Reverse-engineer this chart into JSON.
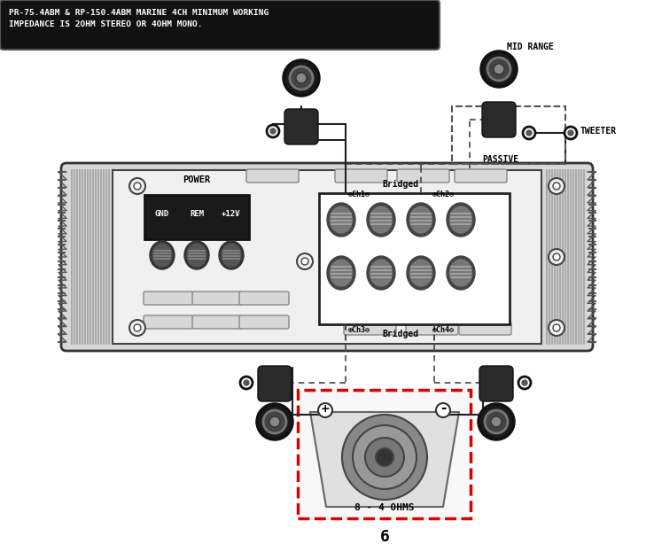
{
  "title_text": "PR-75.4ABM & RP-150.4ABM MARINE 4CH MINIMUM WORKING\nIMPEDANCE IS 2OHM STEREO OR 4OHM MONO.",
  "bg_color": "#ffffff",
  "amp_body_color": "#e0e0e0",
  "amp_inner_color": "#f5f5f5",
  "amp_outline": "#333333",
  "heatsink_color": "#c8c8c8",
  "terminal_dark": "#222222",
  "red_dashed": "#dd0000",
  "page_num": "6",
  "sub_label": "8 - 4 OHMS",
  "tweeter_label": "TWEETER",
  "passive_label": "PASSIVE",
  "midrange_label": "MID RANGE",
  "power_label": "POWER",
  "gnd_label": "GND",
  "rem_label": "REM",
  "plus12_label": "+12V",
  "bridged_top": "Bridged",
  "bridged_bot": "Bridged",
  "ch1_label": "⊕Ch1⊖",
  "ch2_label": "⊕Ch2⊖",
  "ch3_label": "⊕Ch3⊖",
  "ch4_label": "⊕Ch4⊖"
}
